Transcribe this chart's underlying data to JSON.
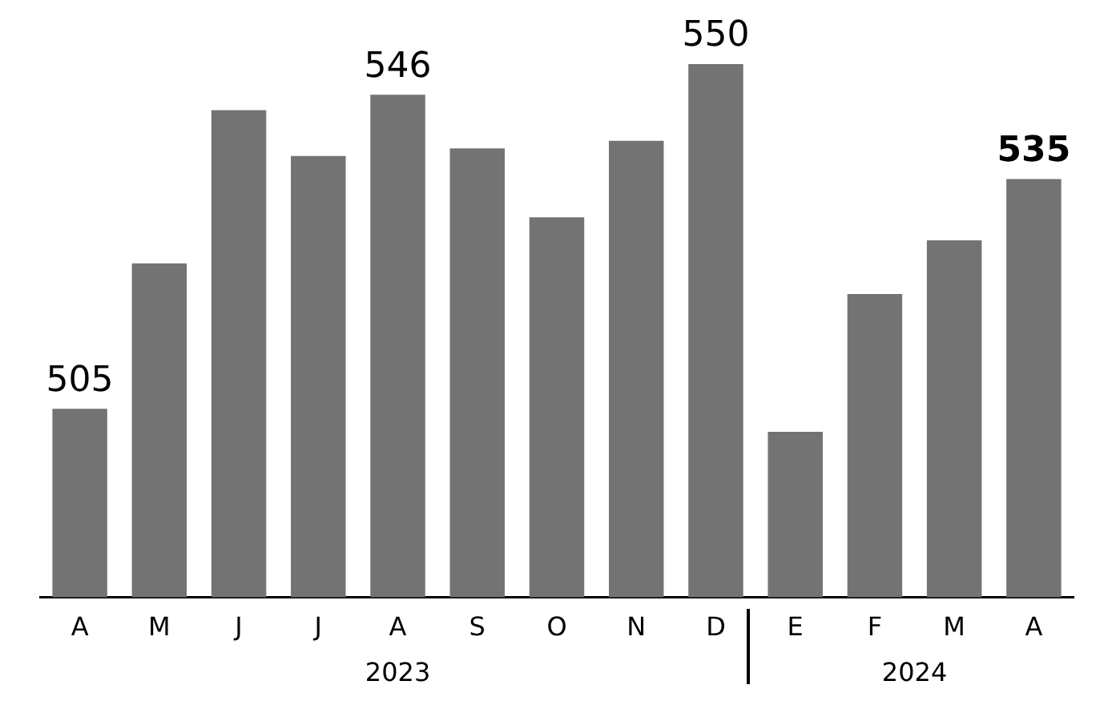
{
  "chart_data": {
    "type": "bar",
    "categories": [
      "A",
      "M",
      "J",
      "J",
      "A",
      "S",
      "O",
      "N",
      "D",
      "E",
      "F",
      "M",
      "A"
    ],
    "values": [
      505,
      524,
      544,
      538,
      546,
      539,
      530,
      540,
      550,
      502,
      520,
      527,
      535
    ],
    "value_labels": [
      "505",
      null,
      null,
      null,
      "546",
      null,
      null,
      null,
      "550",
      null,
      null,
      null,
      "535"
    ],
    "color": "#737373",
    "annotations": [
      "2023",
      "2024"
    ]
  }
}
